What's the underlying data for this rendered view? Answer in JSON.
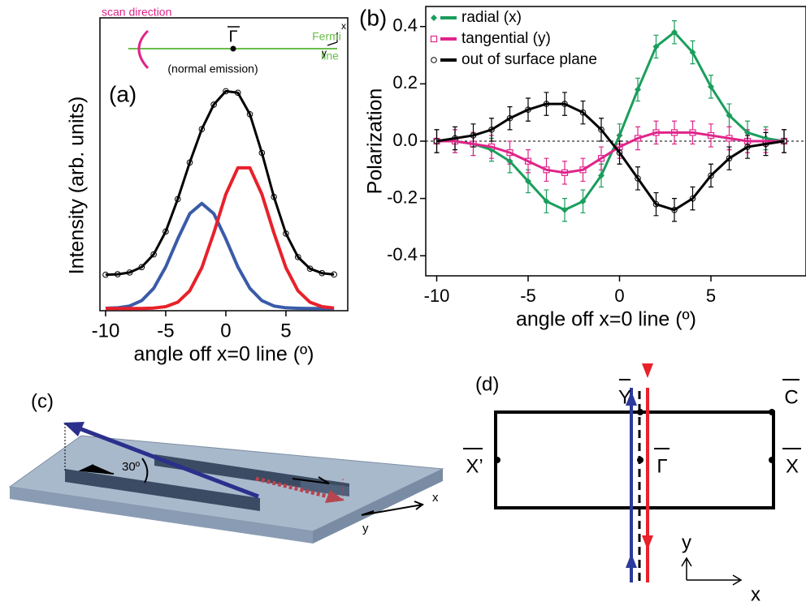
{
  "chart_data": [
    {
      "type": "line",
      "panel_label": "(a)",
      "xlabel": "angle off x=0 line (º)",
      "ylabel": "Intensity (arb. units)",
      "x": [
        -10,
        -9,
        -8,
        -7,
        -6,
        -5,
        -4,
        -3,
        -2,
        -1,
        0,
        1,
        2,
        3,
        4,
        5,
        6,
        7,
        8,
        9
      ],
      "series": [
        {
          "color": "#3a5ba8",
          "values": [
            0.001,
            0.003,
            0.011,
            0.035,
            0.09,
            0.186,
            0.311,
            0.424,
            0.47,
            0.424,
            0.311,
            0.186,
            0.09,
            0.035,
            0.011,
            0.003,
            0.001,
            0,
            0,
            0
          ]
        },
        {
          "color": "#e8212a",
          "values": [
            0,
            0,
            0,
            0,
            0.002,
            0.008,
            0.028,
            0.079,
            0.182,
            0.338,
            0.511,
            0.629,
            0.629,
            0.511,
            0.338,
            0.182,
            0.079,
            0.028,
            0.008,
            0.002
          ]
        },
        {
          "color": "#000000",
          "marker": "circle",
          "values": [
            0.151,
            0.153,
            0.161,
            0.185,
            0.242,
            0.344,
            0.489,
            0.653,
            0.802,
            0.912,
            0.972,
            0.965,
            0.869,
            0.696,
            0.499,
            0.335,
            0.23,
            0.178,
            0.158,
            0.152
          ]
        }
      ],
      "xlim": [
        -10.47,
        10.14
      ],
      "ylim": [
        -0.01,
        1.3
      ],
      "xticks": [
        -10,
        -5,
        0,
        5
      ],
      "inset": {
        "scan": "scan direction",
        "gamma": "Γ",
        "emission": "(normal emission)",
        "fermi": "Fermi",
        "fermi2": "line",
        "x": "x",
        "y": "y"
      }
    },
    {
      "type": "line",
      "panel_label": "(b)",
      "xlabel": "angle off x=0 line (º)",
      "ylabel": "Polarization",
      "x": [
        -10,
        -9,
        -8,
        -7,
        -6,
        -5,
        -4,
        -3,
        -2,
        -1,
        0,
        1,
        2,
        3,
        4,
        5,
        6,
        7,
        8,
        9
      ],
      "series": [
        {
          "name": "radial (x)",
          "color": "#1a9e5c",
          "marker": "diamond",
          "error": 0.04,
          "values": [
            0,
            0,
            -0.01,
            -0.03,
            -0.07,
            -0.14,
            -0.21,
            -0.24,
            -0.21,
            -0.12,
            0.02,
            0.18,
            0.33,
            0.38,
            0.31,
            0.19,
            0.09,
            0.03,
            0.01,
            0
          ]
        },
        {
          "name": "tangential (y)",
          "color": "#e0248a",
          "marker": "square",
          "error": 0.04,
          "values": [
            0,
            0,
            -0.01,
            -0.02,
            -0.04,
            -0.07,
            -0.1,
            -0.11,
            -0.1,
            -0.06,
            -0.02,
            0.01,
            0.03,
            0.03,
            0.03,
            0.02,
            0.01,
            0,
            0,
            0
          ]
        },
        {
          "name": "out of surface plane",
          "color": "#000000",
          "marker": "circle",
          "error": 0.04,
          "values": [
            0,
            0.01,
            0.02,
            0.04,
            0.08,
            0.11,
            0.13,
            0.13,
            0.1,
            0.04,
            -0.04,
            -0.13,
            -0.22,
            -0.24,
            -0.2,
            -0.12,
            -0.06,
            -0.02,
            -0.01,
            0
          ]
        }
      ],
      "xlim": [
        -10.6,
        10.2
      ],
      "ylim": [
        -0.47,
        0.47
      ],
      "xticks": [
        -10,
        -5,
        0,
        5
      ],
      "yticks": [
        -0.4,
        -0.2,
        {
          "value": 0,
          "label": "0.0"
        },
        0.2,
        0.4
      ],
      "zero_line": true,
      "legend": "upper left"
    }
  ],
  "panel_c": {
    "label": "(c)",
    "angle": "30º",
    "x": "x",
    "y": "y"
  },
  "panel_d": {
    "label": "(d)",
    "y_point": "Y",
    "c_point": "C",
    "x_left": "X’",
    "x_right": "X",
    "gamma": "Γ",
    "y_axis": "y",
    "x_axis": "x"
  }
}
